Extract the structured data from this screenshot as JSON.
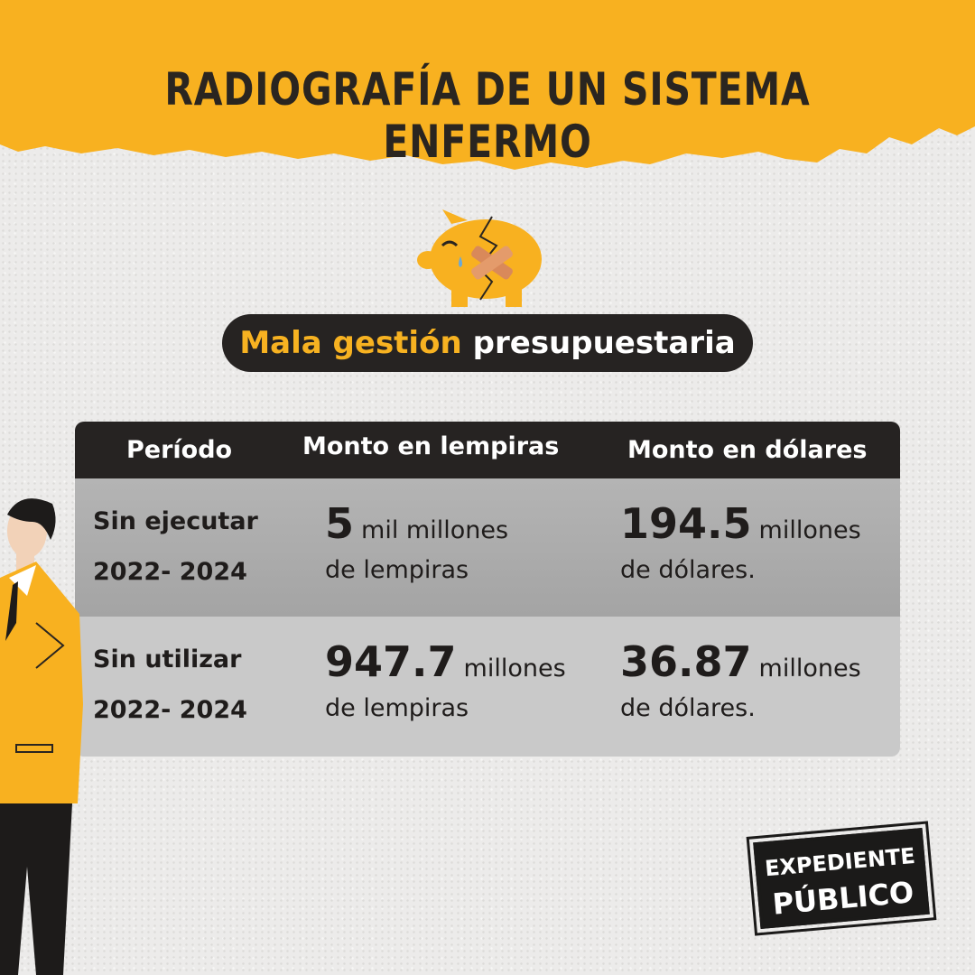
{
  "header": {
    "title": "RADIOGRAFÍA DE UN SISTEMA ENFERMO"
  },
  "subtitle": {
    "highlight": "Mala gestión",
    "rest": "presupuestaria"
  },
  "table": {
    "columns": [
      "Período",
      "Monto en lempiras",
      "Monto en dólares"
    ],
    "rows": [
      {
        "period": [
          "Sin ejecutar",
          "2022- 2024"
        ],
        "lempiras": {
          "amount": 5,
          "unit": "mil millones",
          "suffix": "de lempiras"
        },
        "dolares": {
          "amount": 194.5,
          "unit": "millones",
          "suffix": "de dólares."
        }
      },
      {
        "period": [
          "Sin utilizar",
          "2022- 2024"
        ],
        "lempiras": {
          "amount": 947.7,
          "unit": "millones",
          "suffix": "de lempiras"
        },
        "dolares": {
          "amount": 36.87,
          "unit": "millones",
          "suffix": "de dólares."
        }
      }
    ]
  },
  "logo": [
    "EXPEDIENTE",
    "PÚBLICO"
  ]
}
